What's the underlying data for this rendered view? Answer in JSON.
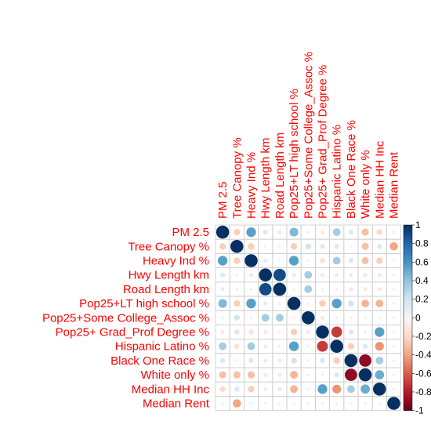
{
  "chart_data": {
    "type": "heatmap",
    "variables": [
      "PM 2.5",
      "Tree Canopy %",
      "Heavy Ind %",
      "Hwy Length km",
      "Road Length km",
      "Pop25+LT high school %",
      "Pop25+Some College_Assoc %",
      "Pop25+ Grad_Prof Degree %",
      "Hispanic Latino %",
      "Black One Race %",
      "White only %",
      "Median HH Inc",
      "Median Rent"
    ],
    "row_labels": [
      "PM 2.5",
      "Tree Canopy %",
      "Heavy Ind %",
      "Hwy Length km",
      "Road Length km",
      "Pop25+LT high school %",
      "Pop25+Some College_Assoc %",
      "Pop25+ Grad_Prof Degree %",
      "Hispanic Latino %",
      "Black One Race %",
      "White only %",
      "Median HH Inc",
      "Median Rent"
    ],
    "column_labels": [
      "PM 2.5",
      "Tree Canopy  %",
      "Heavy Ind %",
      "Hwy Length km",
      "Road Length km",
      "Pop25+LT high school %",
      "Pop25+Some College_Assoc %",
      "Pop25+ Grad_Prof Degree %",
      "Hispanic Latino %",
      "Black One Race %",
      "White only %",
      "Median HH Inc",
      "Median Rent"
    ],
    "matrix": [
      [
        1.0,
        -0.25,
        0.55,
        0.15,
        0.1,
        0.45,
        0.05,
        -0.1,
        0.35,
        0.15,
        -0.3,
        -0.2,
        0.05
      ],
      [
        -0.25,
        1.0,
        -0.25,
        -0.05,
        -0.05,
        -0.25,
        0.2,
        0.15,
        -0.15,
        0.05,
        -0.3,
        0.15,
        -0.4
      ],
      [
        0.55,
        -0.25,
        1.0,
        0.1,
        0.05,
        0.55,
        -0.05,
        -0.15,
        0.35,
        0.15,
        -0.3,
        -0.25,
        0.05
      ],
      [
        0.15,
        -0.05,
        0.1,
        1.0,
        0.9,
        0.1,
        0.35,
        -0.1,
        0.1,
        0.1,
        -0.1,
        -0.1,
        0.05
      ],
      [
        0.1,
        -0.05,
        0.05,
        0.9,
        1.0,
        0.05,
        0.35,
        -0.05,
        0.05,
        0.1,
        -0.1,
        -0.1,
        0.05
      ],
      [
        0.45,
        -0.25,
        0.55,
        0.1,
        0.05,
        1.0,
        -0.05,
        -0.25,
        0.55,
        0.2,
        -0.35,
        -0.35,
        0.05
      ],
      [
        0.05,
        0.2,
        -0.05,
        0.35,
        0.35,
        -0.05,
        1.0,
        -0.1,
        0.05,
        0.05,
        0.05,
        0.05,
        0.05
      ],
      [
        -0.1,
        0.15,
        -0.15,
        -0.1,
        -0.05,
        -0.25,
        -0.1,
        1.0,
        -0.7,
        0.15,
        0.05,
        0.55,
        0.05
      ],
      [
        0.35,
        -0.15,
        0.35,
        0.1,
        0.05,
        0.55,
        0.05,
        -0.7,
        1.0,
        -0.25,
        0.15,
        -0.45,
        0.05
      ],
      [
        0.15,
        0.05,
        0.15,
        0.1,
        0.1,
        0.2,
        0.05,
        0.15,
        -0.25,
        1.0,
        -0.9,
        0.35,
        0.05
      ],
      [
        -0.3,
        -0.3,
        -0.3,
        -0.1,
        -0.1,
        -0.35,
        0.05,
        0.05,
        0.15,
        -0.9,
        1.0,
        0.5,
        0.05
      ],
      [
        -0.2,
        0.15,
        -0.25,
        -0.1,
        -0.1,
        -0.35,
        0.05,
        0.55,
        -0.45,
        0.35,
        0.5,
        1.0,
        0.05
      ],
      [
        0.05,
        -0.4,
        0.05,
        0.05,
        0.05,
        0.05,
        0.05,
        0.05,
        0.05,
        0.05,
        0.05,
        0.05,
        1.0
      ]
    ],
    "colorbar": {
      "ticks": [
        "1",
        "0.8",
        "0.6",
        "0.4",
        "0.2",
        "0",
        "-0.2",
        "-0.4",
        "-0.6",
        "-0.8",
        "-1"
      ],
      "range": [
        -1,
        1
      ]
    },
    "colors": {
      "strong_negative": "#67001f",
      "negative": "#d6604d",
      "neutral": "#f7f7f7",
      "positive": "#4393c3",
      "strong_positive": "#053061",
      "label": "#ff0000",
      "grid": "#cccccc"
    }
  }
}
